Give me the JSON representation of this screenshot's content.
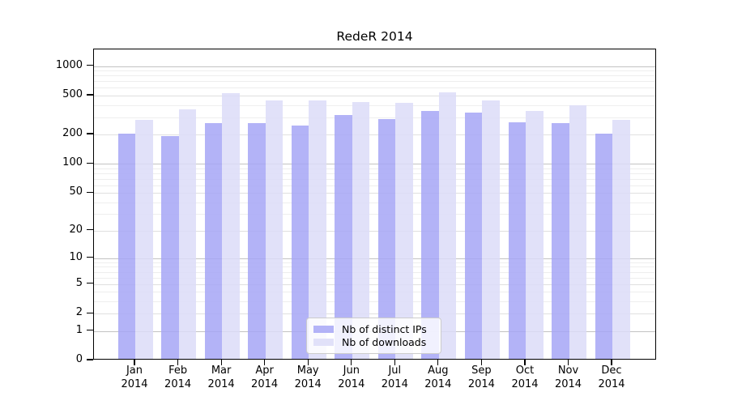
{
  "chart_data": {
    "type": "bar",
    "title": "RedeR 2014",
    "categories": [
      "Jan",
      "Feb",
      "Mar",
      "Apr",
      "May",
      "Jun",
      "Jul",
      "Aug",
      "Sep",
      "Oct",
      "Nov",
      "Dec"
    ],
    "year_label": "2014",
    "series": [
      {
        "name": "Nb of distinct IPs",
        "color": "#a6a6f6",
        "values": [
          198,
          185,
          253,
          253,
          238,
          304,
          277,
          333,
          325,
          256,
          253,
          195
        ]
      },
      {
        "name": "Nb of downloads",
        "color": "#dcdcf8",
        "values": [
          270,
          350,
          513,
          432,
          430,
          413,
          409,
          524,
          433,
          335,
          380,
          270
        ]
      }
    ],
    "yscale": "log1p",
    "y_ticks": [
      0,
      1,
      2,
      5,
      10,
      20,
      50,
      100,
      200,
      500,
      1000
    ],
    "ylim": [
      0,
      1450
    ],
    "grid": true,
    "legend_position": "lower-center-inside",
    "colors": {
      "background": "#ffffff",
      "spine": "#000000",
      "grid_major": "#c3c3c3",
      "grid_minor": "#eeeeee"
    }
  }
}
